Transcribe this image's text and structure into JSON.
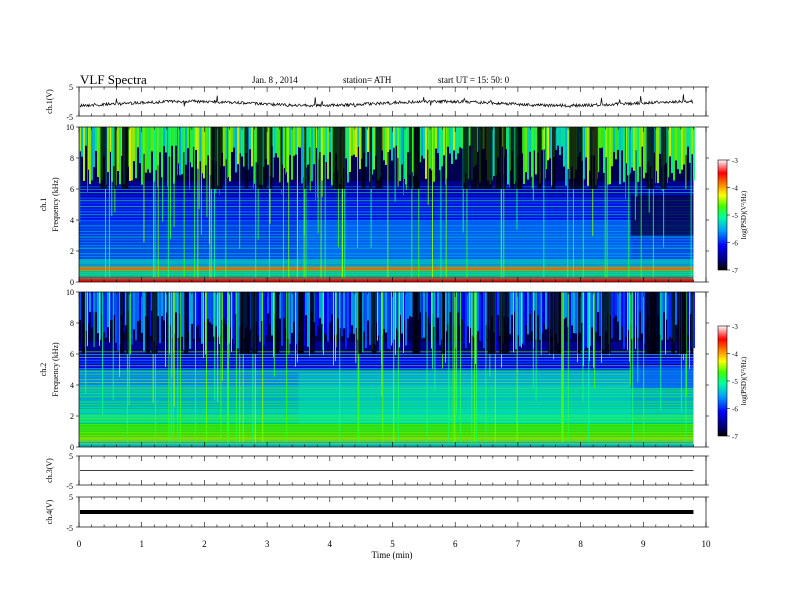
{
  "header": {
    "title": "VLF  Spectra",
    "date": "Jan.  8  , 2014",
    "station": "station= ATH",
    "start": "start  UT  =    15: 50: 0"
  },
  "chart_data": [
    {
      "type": "line",
      "panel": "ch1-waveform",
      "ylabel": "ch.1(V)",
      "yticks": [
        "5",
        "-5"
      ],
      "ylim": [
        -5,
        5
      ],
      "xlim": [
        0,
        10
      ],
      "series": [
        {
          "values_description_level": -0.4
        }
      ]
    },
    {
      "type": "heatmap",
      "panel": "ch1-spectrogram",
      "ylabel_top": "ch.1",
      "ylabel": "Frequency  (kHz)",
      "yticks": [
        "0",
        "2",
        "4",
        "6",
        "8",
        "10"
      ],
      "ylim": [
        0,
        10
      ],
      "xlim": [
        0,
        10
      ],
      "data_end_min": 9.8,
      "colorbar": {
        "label": "log(PSD)(V²/Hz)",
        "ticks": [
          "-3",
          "-4",
          "-5",
          "-6",
          "-7"
        ],
        "range": [
          -7,
          -3
        ]
      }
    },
    {
      "type": "heatmap",
      "panel": "ch2-spectrogram",
      "ylabel_top": "ch.2",
      "ylabel": "Frequency  (kHz)",
      "yticks": [
        "0",
        "2",
        "4",
        "6",
        "8",
        "10"
      ],
      "ylim": [
        0,
        10
      ],
      "xlim": [
        0,
        10
      ],
      "data_end_min": 9.8,
      "colorbar": {
        "label": "log(PSD)(V²/Hz)",
        "ticks": [
          "-3",
          "-4",
          "-5",
          "-6",
          "-7"
        ],
        "range": [
          -7,
          -3
        ]
      }
    },
    {
      "type": "line",
      "panel": "ch3-waveform",
      "ylabel": "ch.3(V)",
      "yticks": [
        "5",
        "-5"
      ],
      "ylim": [
        -5,
        5
      ],
      "xlim": [
        0,
        10
      ],
      "series": [
        {
          "level": 0
        }
      ]
    },
    {
      "type": "line",
      "panel": "ch4-waveform",
      "ylabel": "ch.4(V)",
      "yticks": [
        "5",
        "-5"
      ],
      "ylim": [
        -5,
        5
      ],
      "xlim": [
        0,
        10
      ],
      "series": [
        {
          "level": 0
        }
      ]
    }
  ],
  "xaxis": {
    "label": "Time  (min)",
    "ticks": [
      "0",
      "1",
      "2",
      "3",
      "4",
      "5",
      "6",
      "7",
      "8",
      "9",
      "10"
    ],
    "range": [
      0,
      10
    ]
  }
}
